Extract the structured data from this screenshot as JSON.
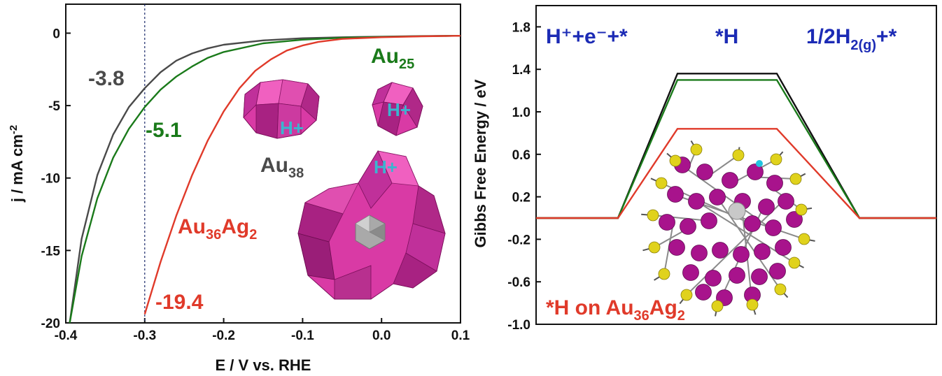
{
  "left_chart": {
    "xlabel": "E / V vs. RHE",
    "ylabel_main": "j / mA cm",
    "ylabel_sup": "-2",
    "marker_x": -0.3,
    "labels": {
      "au38_val": "-3.8",
      "au25_val": "-5.1",
      "au36ag2_val": "-19.4",
      "au25_base": "Au",
      "au25_sub": "25",
      "au38_base": "Au",
      "au38_sub": "38",
      "au36ag2_a": "Au",
      "au36ag2_a_sub": "36",
      "au36ag2_b": "Ag",
      "au36ag2_b_sub": "2",
      "hplus": "H+"
    }
  },
  "right_chart": {
    "ylabel": "Gibbs Free Energy / eV",
    "labels": {
      "state1": "H⁺+e⁻+*",
      "state2": "*H",
      "state3_a": "1/2H",
      "state3_sub": "2(g)",
      "state3_b": "+*",
      "caption_a": "*H on Au",
      "caption_sub1": "36",
      "caption_b": "Ag",
      "caption_sub2": "2"
    }
  },
  "chart_data": [
    {
      "type": "line",
      "xlabel": "E / V vs. RHE",
      "ylabel": "j / mA cm-2",
      "xlim": [
        -0.4,
        0.1
      ],
      "ylim": [
        -20,
        2
      ],
      "xticks": [
        -0.4,
        -0.3,
        -0.2,
        -0.1,
        0.0,
        0.1
      ],
      "yticks": [
        0,
        -5,
        -10,
        -15,
        -20
      ],
      "series": [
        {
          "name": "Au38",
          "color": "#4a4a4a",
          "x": [
            -0.395,
            -0.38,
            -0.36,
            -0.34,
            -0.32,
            -0.3,
            -0.28,
            -0.26,
            -0.24,
            -0.22,
            -0.2,
            -0.15,
            -0.1,
            -0.05,
            0.0,
            0.05,
            0.1
          ],
          "y": [
            -20.0,
            -14.2,
            -9.8,
            -7.0,
            -5.1,
            -3.8,
            -2.7,
            -1.9,
            -1.4,
            -1.05,
            -0.8,
            -0.5,
            -0.35,
            -0.28,
            -0.24,
            -0.2,
            -0.18
          ]
        },
        {
          "name": "Au25",
          "color": "#1a7a1a",
          "x": [
            -0.395,
            -0.38,
            -0.36,
            -0.34,
            -0.32,
            -0.3,
            -0.28,
            -0.26,
            -0.24,
            -0.22,
            -0.2,
            -0.15,
            -0.1,
            -0.05,
            0.0,
            0.05,
            0.1
          ],
          "y": [
            -20.0,
            -15.4,
            -11.4,
            -8.6,
            -6.6,
            -5.1,
            -3.9,
            -3.0,
            -2.3,
            -1.7,
            -1.3,
            -0.7,
            -0.45,
            -0.32,
            -0.26,
            -0.21,
            -0.18
          ]
        },
        {
          "name": "Au36Ag2",
          "color": "#e03a2a",
          "x": [
            -0.3,
            -0.28,
            -0.26,
            -0.24,
            -0.22,
            -0.2,
            -0.18,
            -0.16,
            -0.14,
            -0.12,
            -0.1,
            -0.08,
            -0.05,
            0.0,
            0.05,
            0.1
          ],
          "y": [
            -19.4,
            -15.8,
            -12.6,
            -9.8,
            -7.4,
            -5.4,
            -3.8,
            -2.6,
            -1.8,
            -1.2,
            -0.85,
            -0.6,
            -0.4,
            -0.28,
            -0.22,
            -0.18
          ]
        }
      ]
    },
    {
      "type": "line",
      "ylabel": "Gibbs Free Energy / eV",
      "ylim": [
        -1.0,
        2.0
      ],
      "yticks": [
        1.8,
        1.4,
        1.0,
        0.6,
        0.2,
        -0.2,
        -0.6,
        -1.0
      ],
      "categories": [
        "H⁺+e⁻+*",
        "*H",
        "1/2H2(g)+*"
      ],
      "series": [
        {
          "color": "#111111",
          "values": [
            0.0,
            1.36,
            0.0
          ]
        },
        {
          "color": "#1a7a1a",
          "values": [
            0.0,
            1.3,
            0.0
          ]
        },
        {
          "color": "#e03a2a",
          "values": [
            0.0,
            0.84,
            0.0
          ]
        }
      ]
    }
  ]
}
